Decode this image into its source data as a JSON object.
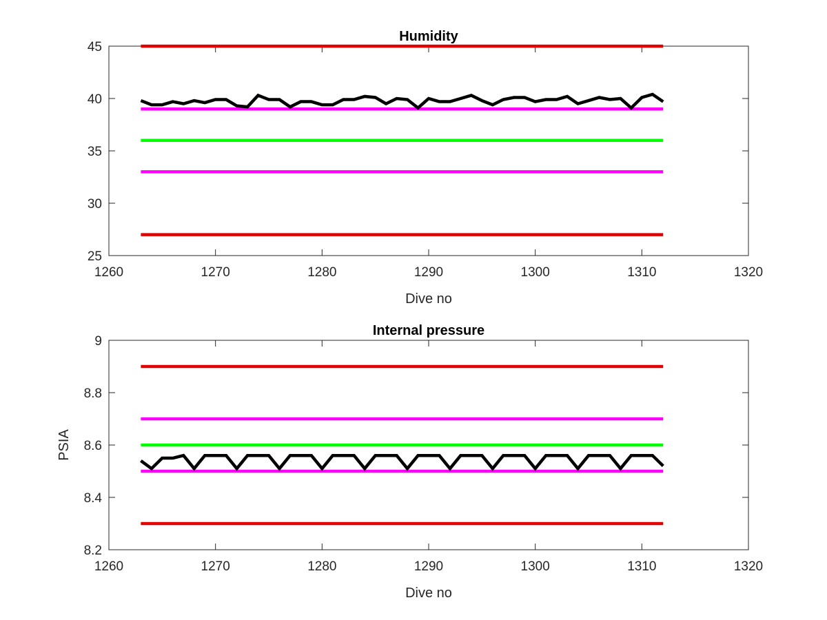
{
  "chart_data": [
    {
      "type": "line",
      "title": "Humidity",
      "xlabel": "Dive no",
      "ylabel": "",
      "xlim": [
        1260,
        1320
      ],
      "ylim": [
        25,
        45
      ],
      "xticks": [
        1260,
        1270,
        1280,
        1290,
        1300,
        1310,
        1320
      ],
      "yticks": [
        25,
        30,
        35,
        40,
        45
      ],
      "xtick_labels": [
        "1260",
        "1270",
        "1280",
        "1290",
        "1300",
        "1310",
        "1320"
      ],
      "ytick_labels": [
        "25",
        "30",
        "35",
        "40",
        "45"
      ],
      "grid": false,
      "legend": "none",
      "reference_lines": [
        {
          "y": 45,
          "x": [
            1263,
            1312
          ],
          "color": "#e00000"
        },
        {
          "y": 39,
          "x": [
            1263,
            1312
          ],
          "color": "#ff00ff"
        },
        {
          "y": 36,
          "x": [
            1263,
            1312
          ],
          "color": "#00ff00"
        },
        {
          "y": 33,
          "x": [
            1263,
            1312
          ],
          "color": "#ff00ff"
        },
        {
          "y": 27,
          "x": [
            1263,
            1312
          ],
          "color": "#e00000"
        }
      ],
      "series": [
        {
          "color": "#000000",
          "x": [
            1263,
            1264,
            1265,
            1266,
            1267,
            1268,
            1269,
            1270,
            1271,
            1272,
            1273,
            1274,
            1275,
            1276,
            1277,
            1278,
            1279,
            1280,
            1281,
            1282,
            1283,
            1284,
            1285,
            1286,
            1287,
            1288,
            1289,
            1290,
            1291,
            1292,
            1293,
            1294,
            1295,
            1296,
            1297,
            1298,
            1299,
            1300,
            1301,
            1302,
            1303,
            1304,
            1305,
            1306,
            1307,
            1308,
            1309,
            1310,
            1311,
            1312
          ],
          "values": [
            39.8,
            39.4,
            39.4,
            39.7,
            39.5,
            39.8,
            39.6,
            39.9,
            39.9,
            39.3,
            39.2,
            40.3,
            39.9,
            39.9,
            39.2,
            39.7,
            39.7,
            39.4,
            39.4,
            39.9,
            39.9,
            40.2,
            40.1,
            39.5,
            40.0,
            39.9,
            39.1,
            40.0,
            39.7,
            39.7,
            40.0,
            40.3,
            39.8,
            39.4,
            39.9,
            40.1,
            40.1,
            39.7,
            39.9,
            39.9,
            40.2,
            39.5,
            39.8,
            40.1,
            39.9,
            40.0,
            39.1,
            40.1,
            40.4,
            39.7
          ]
        }
      ]
    },
    {
      "type": "line",
      "title": "Internal pressure",
      "xlabel": "Dive no",
      "ylabel": "PSIA",
      "xlim": [
        1260,
        1320
      ],
      "ylim": [
        8.2,
        9
      ],
      "xticks": [
        1260,
        1270,
        1280,
        1290,
        1300,
        1310,
        1320
      ],
      "yticks": [
        8.2,
        8.4,
        8.6,
        8.8,
        9
      ],
      "xtick_labels": [
        "1260",
        "1270",
        "1280",
        "1290",
        "1300",
        "1310",
        "1320"
      ],
      "ytick_labels": [
        "8.2",
        "8.4",
        "8.6",
        "8.8",
        "9"
      ],
      "grid": false,
      "legend": "none",
      "reference_lines": [
        {
          "y": 8.9,
          "x": [
            1263,
            1312
          ],
          "color": "#e00000"
        },
        {
          "y": 8.7,
          "x": [
            1263,
            1312
          ],
          "color": "#ff00ff"
        },
        {
          "y": 8.6,
          "x": [
            1263,
            1312
          ],
          "color": "#00ff00"
        },
        {
          "y": 8.5,
          "x": [
            1263,
            1312
          ],
          "color": "#ff00ff"
        },
        {
          "y": 8.3,
          "x": [
            1263,
            1312
          ],
          "color": "#e00000"
        }
      ],
      "series": [
        {
          "color": "#000000",
          "x": [
            1263,
            1264,
            1265,
            1266,
            1267,
            1268,
            1269,
            1270,
            1271,
            1272,
            1273,
            1274,
            1275,
            1276,
            1277,
            1278,
            1279,
            1280,
            1281,
            1282,
            1283,
            1284,
            1285,
            1286,
            1287,
            1288,
            1289,
            1290,
            1291,
            1292,
            1293,
            1294,
            1295,
            1296,
            1297,
            1298,
            1299,
            1300,
            1301,
            1302,
            1303,
            1304,
            1305,
            1306,
            1307,
            1308,
            1309,
            1310,
            1311,
            1312
          ],
          "values": [
            8.54,
            8.51,
            8.55,
            8.55,
            8.56,
            8.51,
            8.56,
            8.56,
            8.56,
            8.51,
            8.56,
            8.56,
            8.56,
            8.51,
            8.56,
            8.56,
            8.56,
            8.51,
            8.56,
            8.56,
            8.56,
            8.51,
            8.56,
            8.56,
            8.56,
            8.51,
            8.56,
            8.56,
            8.56,
            8.51,
            8.56,
            8.56,
            8.56,
            8.51,
            8.56,
            8.56,
            8.56,
            8.51,
            8.56,
            8.56,
            8.56,
            8.51,
            8.56,
            8.56,
            8.56,
            8.51,
            8.56,
            8.56,
            8.56,
            8.52
          ]
        }
      ]
    }
  ]
}
